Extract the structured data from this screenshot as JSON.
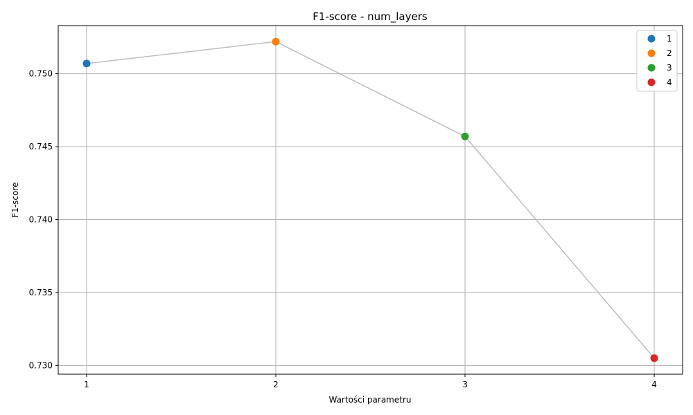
{
  "chart_data": {
    "type": "line",
    "title": "F1-score - num_layers",
    "xlabel": "Wartości parametru",
    "ylabel": "F1-score",
    "x": [
      1,
      2,
      3,
      4
    ],
    "values": [
      0.7507,
      0.7522,
      0.7457,
      0.7305
    ],
    "x_ticks": [
      "1",
      "2",
      "3",
      "4"
    ],
    "y_ticks": [
      "0.730",
      "0.735",
      "0.740",
      "0.745",
      "0.750"
    ],
    "xlim": [
      0.85,
      4.15
    ],
    "ylim": [
      0.7294,
      0.7533
    ],
    "grid": true,
    "line_color": "#bdbdbd",
    "legend_position": "top-right",
    "legend": [
      {
        "label": "1",
        "color": "#1f77b4"
      },
      {
        "label": "2",
        "color": "#ff7f0e"
      },
      {
        "label": "3",
        "color": "#2ca02c"
      },
      {
        "label": "4",
        "color": "#d62728"
      }
    ]
  }
}
